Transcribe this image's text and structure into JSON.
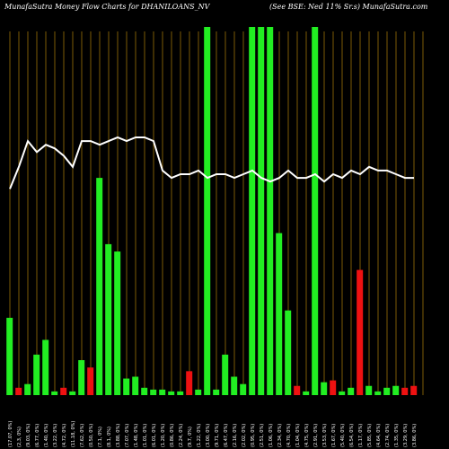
{
  "title_left": "MunafaSutra  Money Flow  Charts for DHANILOANS_NV",
  "title_right": "(See BSE: Ned 11% Sr.s) MunafaSutra.com",
  "colors": {
    "background": "#000000",
    "grid": "#b8860b",
    "up": "#22ee22",
    "down": "#ee1111",
    "line": "#ffffff"
  },
  "chart_data": {
    "type": "bar",
    "title": "MunafaSutra  Money Flow  Charts for DHANILOANS_NV",
    "ylim": [
      0,
      100
    ],
    "categories": [
      "(17.07, 0%)",
      "(2,3, 0%)",
      "(9.03, 0%)",
      "(6.77, 0%)",
      "(1.40, 0%)",
      "(3.22, 0%)",
      "(4.72, 0%)",
      "(11.18, 0%)",
      "(7.62, 0%)",
      "(0.50, 0%)",
      "(7.1, 0%)",
      "(8.1, 0%)",
      "(3.88, 0%)",
      "(7.07, 0%)",
      "(1.48, 0%)",
      "(1.01, 0%)",
      "(6.01, 0%)",
      "(1.20, 0%)",
      "(0.86, 0%)",
      "(2.24, 0%)",
      "(9.7, 0%)",
      "(1.22, 0%)",
      "(3.00, 0%)",
      "(9.71, 0%)",
      "(6.47, 0%)",
      "(2.16, 0%)",
      "(2.02, 0%)",
      "(0.95, 0%)",
      "(2.51, 0%)",
      "(1.06, 0%)",
      "(2.34, 0%)",
      "(4.70, 0%)",
      "(1.04, 0%)",
      "(4.75, 0%)",
      "(2.91, 0%)",
      "(3.53, 0%)",
      "(1.67, 0%)",
      "(5.40, 0%)",
      "(6.54, 0%)",
      "(1.17, 0%)",
      "(5.85, 0%)",
      "(4.64, 0%)",
      "(2.74, 0%)",
      "(1.35, 0%)",
      "(3.29, 0%)",
      "(3.86, 0%)"
    ],
    "series": [
      {
        "values": [
          21,
          2,
          3,
          11,
          15,
          1,
          2,
          1,
          9.5,
          7.5,
          59,
          41,
          39,
          4.5,
          5,
          2,
          1.5,
          1.5,
          1,
          1,
          6.5,
          1.5,
          100,
          1.5,
          11,
          5,
          3,
          100,
          100,
          100,
          44,
          23,
          2.5,
          1,
          100,
          3.5,
          4,
          1,
          2,
          34,
          2.5,
          1,
          2,
          2.5,
          2,
          2.5
        ],
        "colors": [
          "up",
          "down",
          "up",
          "up",
          "up",
          "up",
          "down",
          "up",
          "up",
          "down",
          "up",
          "up",
          "up",
          "up",
          "up",
          "up",
          "up",
          "up",
          "up",
          "up",
          "down",
          "up",
          "up",
          "up",
          "up",
          "up",
          "up",
          "up",
          "up",
          "up",
          "up",
          "up",
          "down",
          "up",
          "up",
          "up",
          "down",
          "up",
          "up",
          "down",
          "up",
          "up",
          "up",
          "up",
          "down",
          "down"
        ]
      },
      {
        "values": [
          56,
          62,
          69,
          66,
          68,
          67,
          65,
          62,
          69,
          69,
          68,
          69,
          70,
          69,
          70,
          70,
          69,
          61,
          59,
          60,
          60,
          61,
          59,
          60,
          60,
          59,
          60,
          61,
          59,
          58,
          59,
          61,
          59,
          59,
          60,
          58,
          60,
          59,
          61,
          60,
          62,
          61,
          61,
          60,
          59,
          59
        ],
        "type": "line"
      }
    ],
    "grid": true
  }
}
